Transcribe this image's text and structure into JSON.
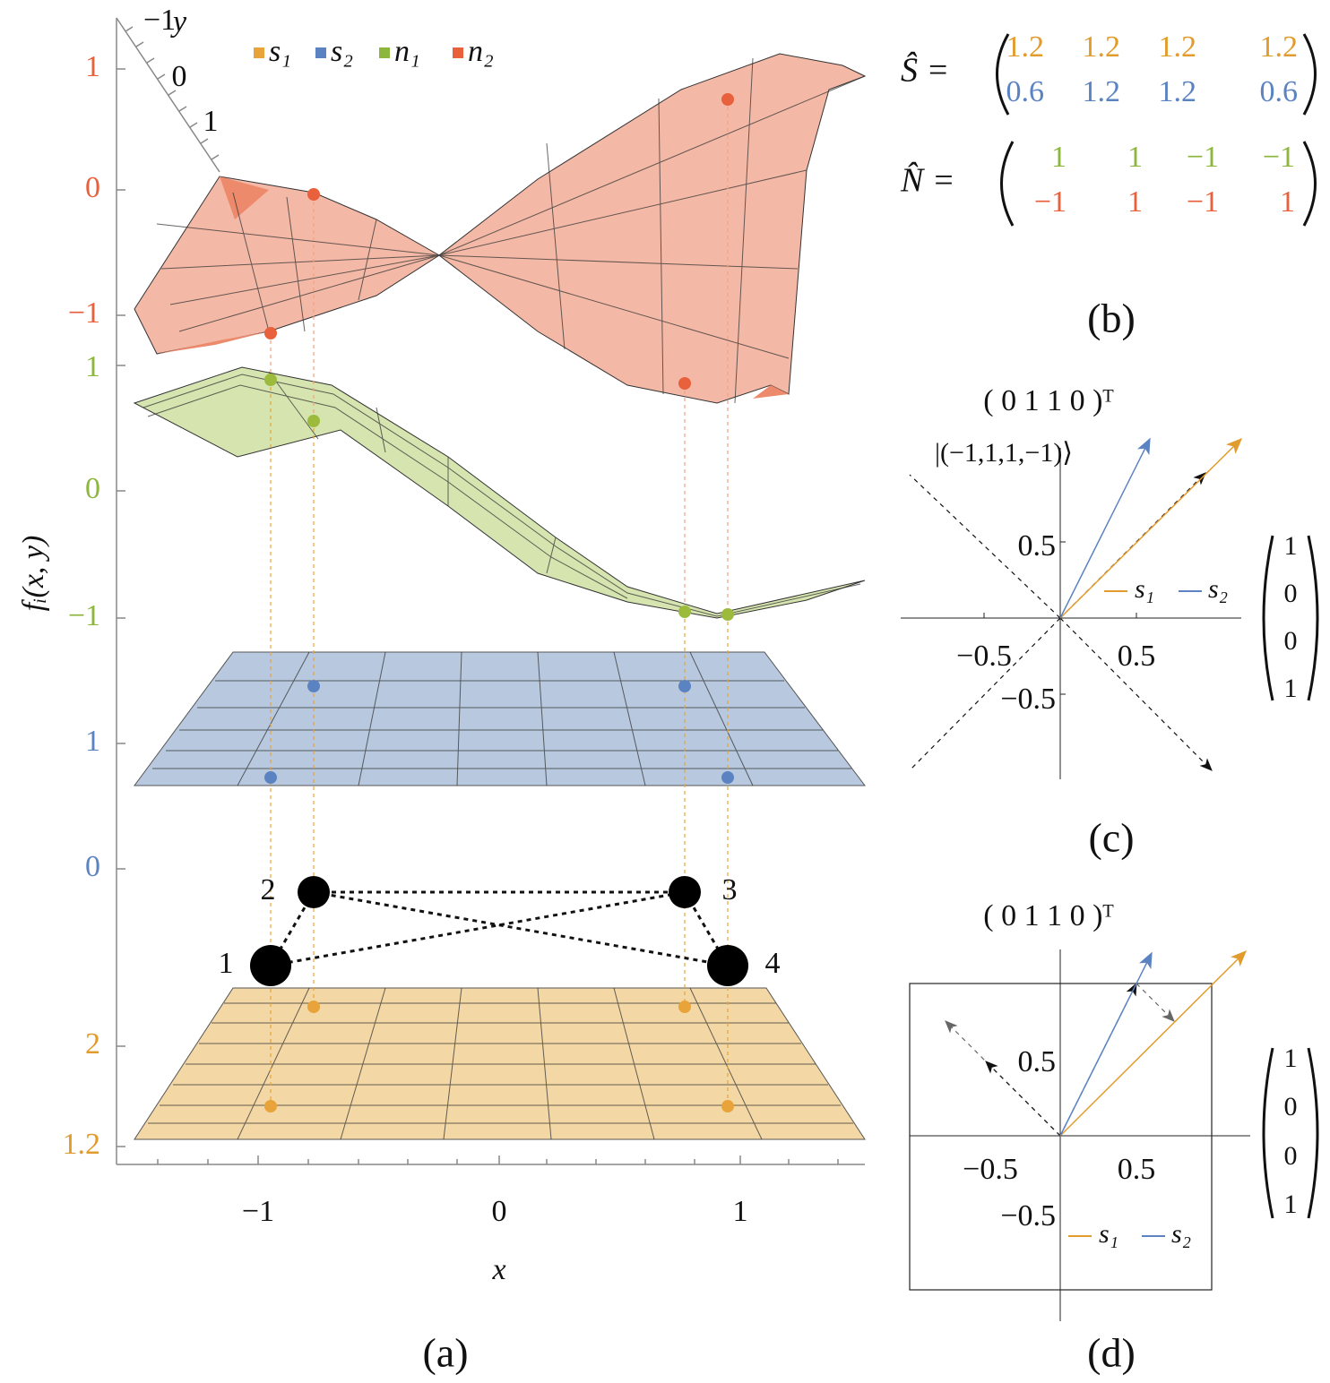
{
  "panel_a": {
    "legend": [
      "s₁",
      "s₂",
      "n₁",
      "n₂"
    ],
    "y_axis_label": "fᵢ(x, y)",
    "x_axis_label": "x",
    "x_ticks": [
      "−1",
      "0",
      "1"
    ],
    "depth_axis": {
      "label": "y",
      "ticks": [
        "−1",
        "0",
        "1"
      ]
    },
    "n2_ticks": [
      "1",
      "0",
      "−1"
    ],
    "n1_ticks": [
      "1",
      "0",
      "−1"
    ],
    "s2_ticks": [
      "1",
      "0"
    ],
    "s1_ticks": [
      "2",
      "1.2"
    ],
    "nodes": [
      "1",
      "2",
      "3",
      "4"
    ],
    "caption": "(a)"
  },
  "panel_b": {
    "s_label": "Ŝ =",
    "s_matrix": [
      [
        "1.2",
        "1.2",
        "1.2",
        "1.2"
      ],
      [
        "0.6",
        "1.2",
        "1.2",
        "0.6"
      ]
    ],
    "n_label": "N̂ =",
    "n_matrix": [
      [
        "1",
        "1",
        "−1",
        "−1"
      ],
      [
        "−1",
        "1",
        "−1",
        "1"
      ]
    ],
    "caption": "(b)"
  },
  "panel_c": {
    "row_vector": "( 0   1   1   0 )ᵀ",
    "ket": "|(−1,1,1,−1)⟩",
    "ticks_y": [
      "0.5",
      "−0.5"
    ],
    "ticks_x": [
      "−0.5",
      "0.5"
    ],
    "legend": [
      "s₁",
      "s₂"
    ],
    "column_vector": [
      "1",
      "0",
      "0",
      "1"
    ],
    "caption": "(c)"
  },
  "panel_d": {
    "row_vector": "( 0   1   1   0 )ᵀ",
    "ticks_y": [
      "0.5",
      "−0.5"
    ],
    "ticks_x": [
      "−0.5",
      "0.5"
    ],
    "legend": [
      "s₁",
      "s₂"
    ],
    "column_vector": [
      "1",
      "0",
      "0",
      "1"
    ],
    "caption": "(d)"
  }
}
